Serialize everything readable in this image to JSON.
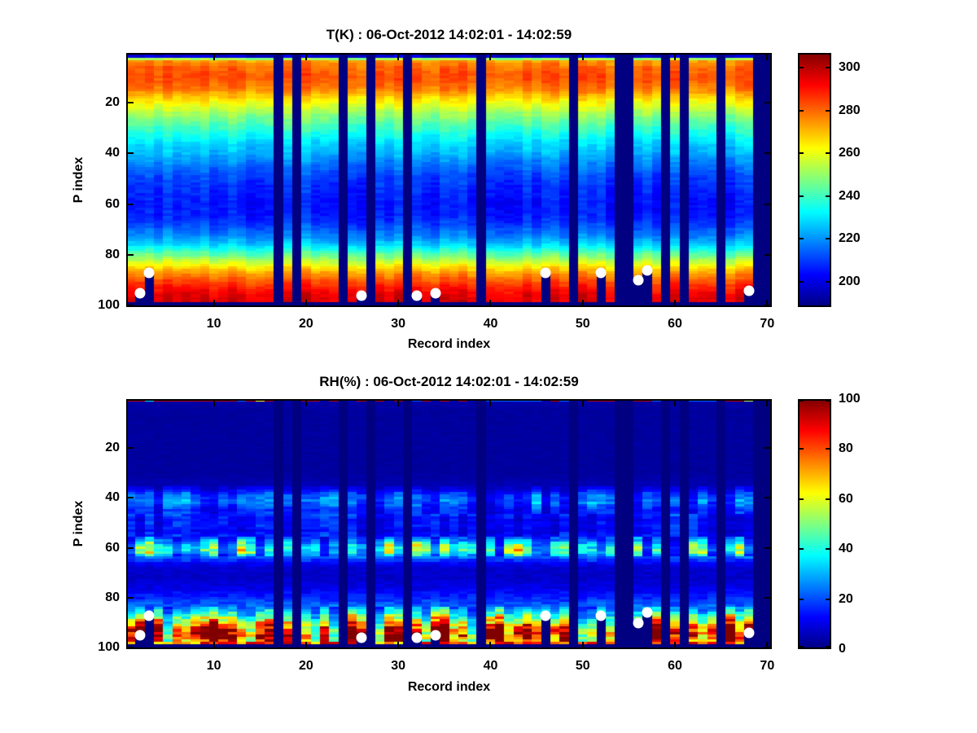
{
  "figure": {
    "background": "#ffffff",
    "missing_color": "#00008f",
    "dot_color": "#ffffff"
  },
  "chart_data": [
    {
      "type": "heatmap",
      "title": "T(K) : 06-Oct-2012 14:02:01 - 14:02:59",
      "xlabel": "Record index",
      "ylabel": "P index",
      "x_ticks": [
        10,
        20,
        30,
        40,
        50,
        60,
        70
      ],
      "y_ticks": [
        20,
        40,
        60,
        80,
        100
      ],
      "x_range": [
        0.5,
        70.5
      ],
      "y_range": [
        0.5,
        100.5
      ],
      "y_reversed": true,
      "n_records": 70,
      "n_levels": 100,
      "colormap": "jet",
      "colorbar_ticks": [
        200,
        220,
        240,
        260,
        280,
        300
      ],
      "color_range": [
        188,
        307
      ],
      "missing_records": [
        17,
        19,
        24,
        27,
        31,
        39,
        49,
        54,
        55,
        59,
        61,
        65,
        69,
        70
      ],
      "missing_below_level": 99,
      "surface_dots": [
        [
          2,
          95
        ],
        [
          3,
          87
        ],
        [
          26,
          96
        ],
        [
          32,
          96
        ],
        [
          34,
          95
        ],
        [
          46,
          87
        ],
        [
          52,
          87
        ],
        [
          56,
          90
        ],
        [
          57,
          86
        ],
        [
          68,
          94
        ]
      ],
      "profile": [
        [
          1,
          194
        ],
        [
          2,
          199
        ],
        [
          3,
          252
        ],
        [
          4,
          275
        ],
        [
          6,
          280
        ],
        [
          9,
          283
        ],
        [
          12,
          282
        ],
        [
          15,
          277
        ],
        [
          18,
          268
        ],
        [
          21,
          260
        ],
        [
          24,
          252
        ],
        [
          28,
          244
        ],
        [
          32,
          236
        ],
        [
          36,
          229
        ],
        [
          40,
          224
        ],
        [
          44,
          218
        ],
        [
          48,
          212
        ],
        [
          52,
          209
        ],
        [
          56,
          207
        ],
        [
          60,
          205
        ],
        [
          64,
          206
        ],
        [
          67,
          209
        ],
        [
          70,
          214
        ],
        [
          73,
          220
        ],
        [
          76,
          228
        ],
        [
          78,
          236
        ],
        [
          80,
          245
        ],
        [
          82,
          254
        ],
        [
          84,
          262
        ],
        [
          86,
          270
        ],
        [
          88,
          277
        ],
        [
          90,
          283
        ],
        [
          92,
          288
        ],
        [
          94,
          292
        ],
        [
          96,
          295
        ],
        [
          97,
          296
        ]
      ],
      "noise": {
        "column": 4,
        "cell": 2.4
      }
    },
    {
      "type": "heatmap",
      "title": "RH(%) : 06-Oct-2012 14:02:01 - 14:02:59",
      "xlabel": "Record index",
      "ylabel": "P index",
      "x_ticks": [
        10,
        20,
        30,
        40,
        50,
        60,
        70
      ],
      "y_ticks": [
        20,
        40,
        60,
        80,
        100
      ],
      "x_range": [
        0.5,
        70.5
      ],
      "y_range": [
        0.5,
        100.5
      ],
      "y_reversed": true,
      "n_records": 70,
      "n_levels": 100,
      "colormap": "jet",
      "colorbar_ticks": [
        0,
        20,
        40,
        60,
        80,
        100
      ],
      "color_range": [
        0,
        100
      ],
      "missing_records": [
        17,
        19,
        24,
        27,
        31,
        39,
        49,
        54,
        55,
        59,
        61,
        65,
        69,
        70
      ],
      "missing_below_level": 99,
      "surface_dots": [
        [
          2,
          95
        ],
        [
          3,
          87
        ],
        [
          26,
          96
        ],
        [
          32,
          96
        ],
        [
          34,
          95
        ],
        [
          46,
          87
        ],
        [
          52,
          87
        ],
        [
          56,
          90
        ],
        [
          57,
          86
        ],
        [
          68,
          94
        ]
      ],
      "profile": [
        [
          1,
          4
        ],
        [
          5,
          3
        ],
        [
          30,
          3
        ],
        [
          35,
          5
        ],
        [
          37,
          12
        ],
        [
          39,
          20
        ],
        [
          41,
          22
        ],
        [
          43,
          19
        ],
        [
          45,
          14
        ],
        [
          47,
          15
        ],
        [
          49,
          12
        ],
        [
          51,
          14
        ],
        [
          53,
          11
        ],
        [
          55,
          14
        ],
        [
          57,
          24
        ],
        [
          59,
          36
        ],
        [
          61,
          40
        ],
        [
          62,
          36
        ],
        [
          64,
          22
        ],
        [
          66,
          12
        ],
        [
          68,
          8
        ],
        [
          72,
          7
        ],
        [
          76,
          10
        ],
        [
          80,
          16
        ],
        [
          83,
          22
        ],
        [
          85,
          32
        ],
        [
          87,
          44
        ],
        [
          89,
          58
        ],
        [
          91,
          72
        ],
        [
          93,
          88
        ],
        [
          95,
          94
        ],
        [
          96,
          90
        ],
        [
          97,
          78
        ]
      ],
      "band_zones": [
        {
          "levels": [
            36,
            46
          ],
          "spread": 0.5
        },
        {
          "levels": [
            47,
            55
          ],
          "spread": 0.4
        },
        {
          "levels": [
            56,
            63
          ],
          "spread": 0.65
        },
        {
          "levels": [
            84,
            97
          ],
          "spread": 0.5
        }
      ],
      "top_row_default": 4,
      "top_row_speckles": [
        [
          1,
          95
        ],
        [
          2,
          95
        ],
        [
          3,
          35
        ],
        [
          4,
          95
        ],
        [
          5,
          95
        ],
        [
          6,
          95
        ],
        [
          7,
          95
        ],
        [
          8,
          95
        ],
        [
          9,
          95
        ],
        [
          10,
          95
        ],
        [
          11,
          95
        ],
        [
          12,
          95
        ],
        [
          13,
          22
        ],
        [
          14,
          95
        ],
        [
          15,
          62
        ],
        [
          16,
          95
        ],
        [
          20,
          95
        ],
        [
          21,
          95
        ],
        [
          23,
          95
        ],
        [
          26,
          95
        ],
        [
          28,
          95
        ],
        [
          30,
          95
        ],
        [
          32,
          20
        ],
        [
          33,
          95
        ],
        [
          35,
          95
        ],
        [
          37,
          95
        ],
        [
          40,
          22
        ],
        [
          41,
          22
        ],
        [
          42,
          22
        ],
        [
          43,
          22
        ],
        [
          44,
          22
        ],
        [
          45,
          22
        ],
        [
          47,
          95
        ],
        [
          48,
          22
        ],
        [
          51,
          95
        ],
        [
          52,
          95
        ],
        [
          53,
          95
        ],
        [
          56,
          95
        ],
        [
          57,
          95
        ],
        [
          58,
          22
        ],
        [
          61,
          22
        ],
        [
          62,
          22
        ],
        [
          63,
          22
        ],
        [
          64,
          22
        ],
        [
          66,
          95
        ],
        [
          67,
          95
        ],
        [
          68,
          55
        ]
      ],
      "noise": {
        "cell_frac": 0.22
      }
    }
  ]
}
